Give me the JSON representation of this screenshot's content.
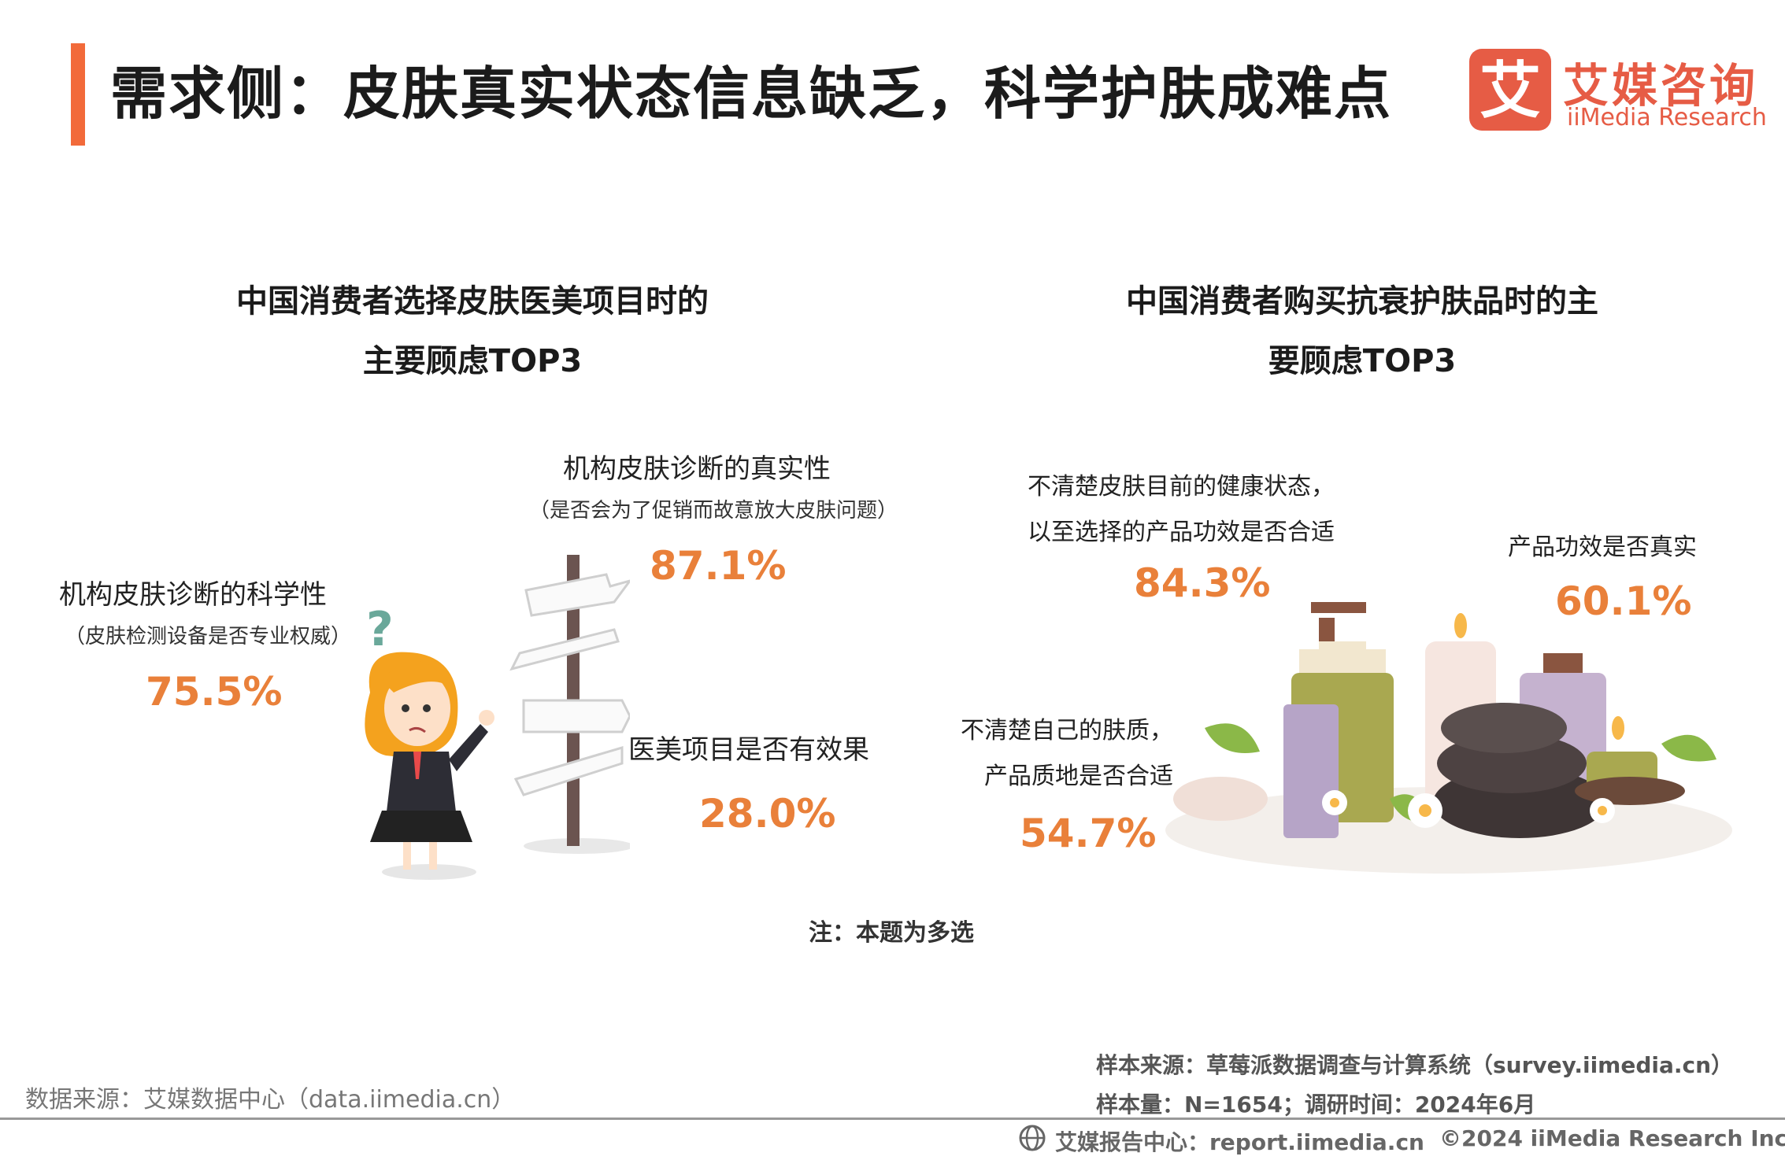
{
  "header": {
    "title": "需求侧：皮肤真实状态信息缺乏，科学护肤成难点",
    "logo_cn": "艾媒咨询",
    "logo_en": "iiMedia Research",
    "logo_char": "艾"
  },
  "left": {
    "title_line1": "中国消费者选择皮肤医美项目时的",
    "title_line2": "主要顾虑TOP3",
    "items": [
      {
        "label": "机构皮肤诊断的科学性",
        "sub": "（皮肤检测设备是否专业权威）",
        "value": "75.5%"
      },
      {
        "label": "机构皮肤诊断的真实性",
        "sub": "（是否会为了促销而故意放大皮肤问题）",
        "value": "87.1%"
      },
      {
        "label": "医美项目是否有效果",
        "sub": "",
        "value": "28.0%"
      }
    ]
  },
  "right": {
    "title_line1": "中国消费者购买抗衰护肤品时的主",
    "title_line2": "要顾虑TOP3",
    "items": [
      {
        "label_line1": "不清楚皮肤目前的健康状态，",
        "label_line2": "以至选择的产品功效是否合适",
        "value": "84.3%"
      },
      {
        "label_line1": "产品功效是否真实",
        "label_line2": "",
        "value": "60.1%"
      },
      {
        "label_line1": "不清楚自己的肤质，",
        "label_line2": "产品质地是否合适",
        "value": "54.7%"
      }
    ]
  },
  "note": "注：本题为多选",
  "sample_source": "样本来源：草莓派数据调查与计算系统（survey.iimedia.cn）",
  "sample_size": "样本量：N=1654；调研时间：2024年6月",
  "data_source": "数据来源：艾媒数据中心（data.iimedia.cn）",
  "footer": {
    "report_center": "艾媒报告中心：report.iimedia.cn",
    "copyright": "©2024  iiMedia Research  Inc"
  },
  "colors": {
    "accent": "#f26a3a",
    "brand": "#e65c45",
    "percent": "#e9803a"
  }
}
